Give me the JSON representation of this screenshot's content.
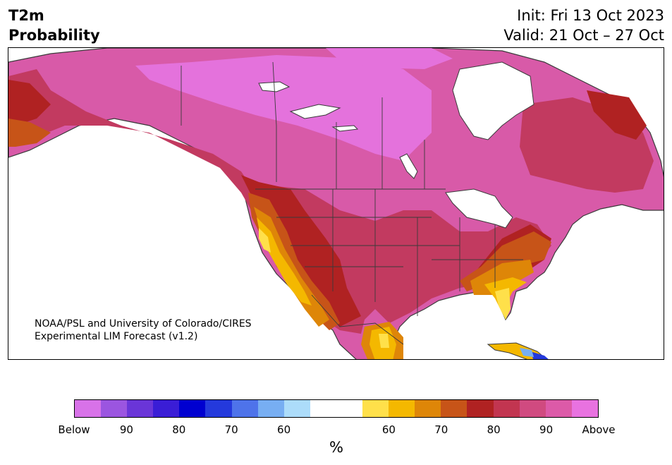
{
  "title": {
    "line1": "T2m",
    "line2": "Probability"
  },
  "init": "Init: Fri 13 Oct 2023",
  "valid": "Valid: 21 Oct – 27 Oct",
  "credit": {
    "line1": "NOAA/PSL and University of Colorado/CIRES",
    "line2": "Experimental LIM Forecast (v1.2)"
  },
  "colorbar": {
    "colors": [
      "#d872e8",
      "#9b55e0",
      "#6a35d8",
      "#3a1dd6",
      "#0000d0",
      "#2439dc",
      "#4e73ea",
      "#77aef2",
      "#acdcfa",
      "#ffffff",
      "#ffffff",
      "#ffe04a",
      "#f4b800",
      "#de8608",
      "#c75418",
      "#b02222",
      "#c23550",
      "#d04a80",
      "#dc5aa8",
      "#e872e0"
    ],
    "tick_labels": [
      "Below",
      "90",
      "80",
      "70",
      "60",
      "60",
      "70",
      "80",
      "90",
      "Above"
    ],
    "unit": "%"
  },
  "palette": {
    "land_top": "#e472dc",
    "land_mid": "#d85aa8",
    "land_warm": "#c23a60",
    "red": "#b02222",
    "orange": "#c75418",
    "amber": "#de8608",
    "yellow": "#f4b800",
    "pale_yellow": "#ffe04a",
    "ocean": "#ffffff",
    "border": "#3a3a3a"
  }
}
